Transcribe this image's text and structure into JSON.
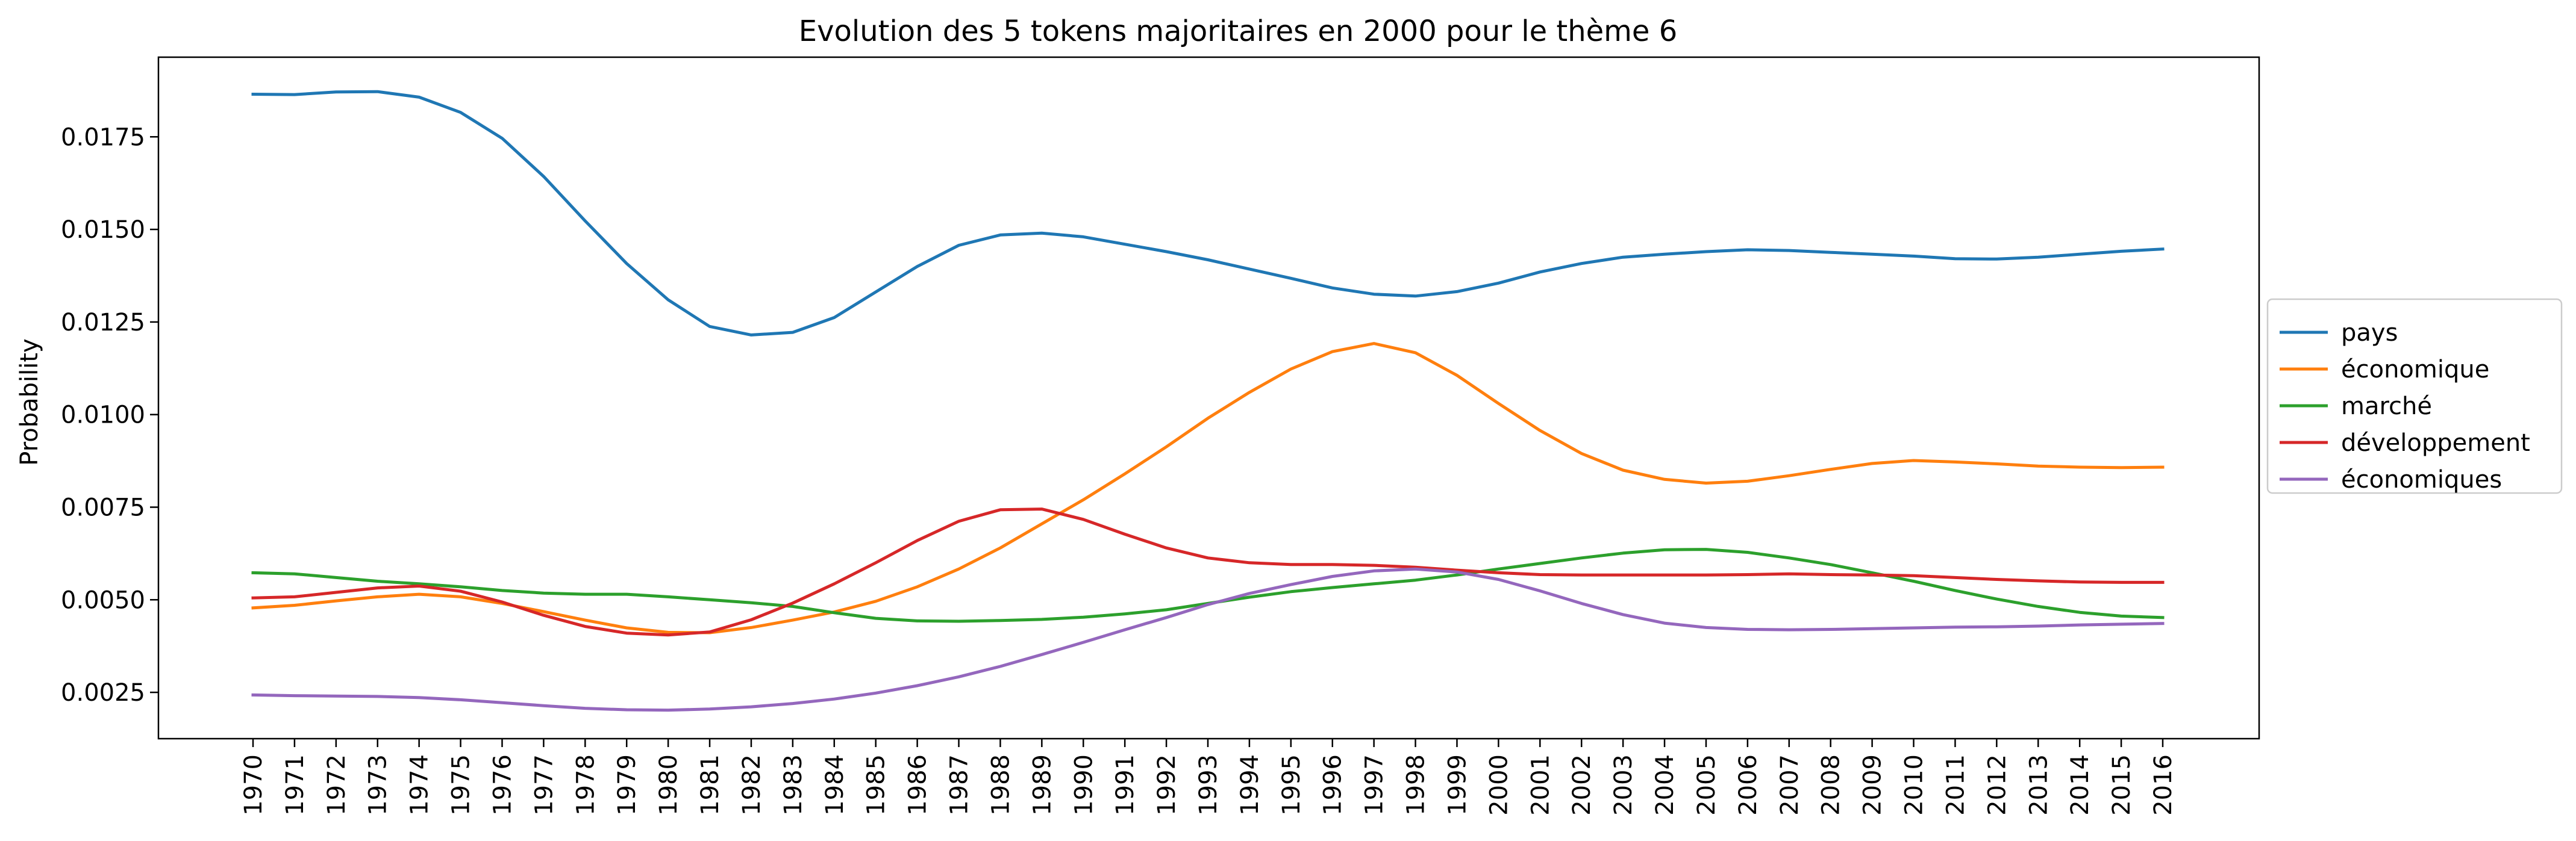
{
  "chart_data": {
    "type": "line",
    "title": "Evolution des 5 tokens majoritaires en 2000 pour le thème 6",
    "xlabel": "",
    "ylabel": "Probability",
    "x": [
      "1970",
      "1971",
      "1972",
      "1973",
      "1974",
      "1975",
      "1976",
      "1977",
      "1978",
      "1979",
      "1980",
      "1981",
      "1982",
      "1983",
      "1984",
      "1985",
      "1986",
      "1987",
      "1988",
      "1989",
      "1990",
      "1991",
      "1992",
      "1993",
      "1994",
      "1995",
      "1996",
      "1997",
      "1998",
      "1999",
      "2000",
      "2001",
      "2002",
      "2003",
      "2004",
      "2005",
      "2006",
      "2007",
      "2008",
      "2009",
      "2010",
      "2011",
      "2012",
      "2013",
      "2014",
      "2015",
      "2016"
    ],
    "ylim": [
      0.00125,
      0.01965
    ],
    "yticks": [
      0.0025,
      0.005,
      0.0075,
      0.01,
      0.0125,
      0.015,
      0.0175
    ],
    "ytick_labels": [
      "0.0025",
      "0.0050",
      "0.0075",
      "0.0100",
      "0.0125",
      "0.0150",
      "0.0175"
    ],
    "grid": false,
    "legend_position": "right",
    "series": [
      {
        "name": "pays",
        "color": "#1f77b4",
        "values": [
          0.01865,
          0.01864,
          0.01871,
          0.01872,
          0.01857,
          0.01816,
          0.01746,
          0.01643,
          0.01523,
          0.01408,
          0.0131,
          0.01238,
          0.01215,
          0.01222,
          0.01262,
          0.01331,
          0.014,
          0.01457,
          0.01485,
          0.0149,
          0.0148,
          0.0146,
          0.0144,
          0.01418,
          0.01393,
          0.01368,
          0.01342,
          0.01325,
          0.0132,
          0.01332,
          0.01355,
          0.01385,
          0.01408,
          0.01425,
          0.01433,
          0.0144,
          0.01445,
          0.01443,
          0.01438,
          0.01433,
          0.01428,
          0.01421,
          0.0142,
          0.01425,
          0.01433,
          0.01441,
          0.01447
        ]
      },
      {
        "name": "économique",
        "color": "#ff7f0e",
        "values": [
          0.00478,
          0.00485,
          0.00497,
          0.00508,
          0.00515,
          0.00508,
          0.0049,
          0.00468,
          0.00445,
          0.00424,
          0.00412,
          0.00411,
          0.00425,
          0.00445,
          0.00467,
          0.00496,
          0.00535,
          0.00583,
          0.0064,
          0.00705,
          0.0077,
          0.0084,
          0.00913,
          0.0099,
          0.0106,
          0.01123,
          0.0117,
          0.01192,
          0.01167,
          0.01106,
          0.0103,
          0.00957,
          0.00895,
          0.0085,
          0.00825,
          0.00815,
          0.0082,
          0.00835,
          0.00852,
          0.00868,
          0.00876,
          0.00872,
          0.00867,
          0.00861,
          0.00858,
          0.00857,
          0.00858
        ]
      },
      {
        "name": "marché",
        "color": "#2ca02c",
        "values": [
          0.00573,
          0.0057,
          0.0056,
          0.0055,
          0.00543,
          0.00535,
          0.00525,
          0.00518,
          0.00515,
          0.00515,
          0.00508,
          0.005,
          0.00492,
          0.00482,
          0.00465,
          0.0045,
          0.00443,
          0.00442,
          0.00444,
          0.00447,
          0.00453,
          0.00462,
          0.00473,
          0.0049,
          0.00507,
          0.00522,
          0.00533,
          0.00543,
          0.00553,
          0.00567,
          0.00583,
          0.00598,
          0.00613,
          0.00626,
          0.00635,
          0.00636,
          0.00628,
          0.00613,
          0.00595,
          0.00573,
          0.0055,
          0.00525,
          0.00502,
          0.00482,
          0.00466,
          0.00456,
          0.00452
        ]
      },
      {
        "name": "développement",
        "color": "#d62728",
        "values": [
          0.00505,
          0.00508,
          0.0052,
          0.00532,
          0.00537,
          0.00523,
          0.00494,
          0.00458,
          0.00428,
          0.0041,
          0.00405,
          0.00413,
          0.00446,
          0.00491,
          0.00543,
          0.006,
          0.0066,
          0.00712,
          0.00743,
          0.00745,
          0.00717,
          0.00677,
          0.0064,
          0.00613,
          0.006,
          0.00595,
          0.00595,
          0.00593,
          0.00588,
          0.0058,
          0.00573,
          0.00568,
          0.00567,
          0.00567,
          0.00567,
          0.00567,
          0.00568,
          0.0057,
          0.00568,
          0.00567,
          0.00565,
          0.0056,
          0.00555,
          0.00551,
          0.00548,
          0.00547,
          0.00547
        ]
      },
      {
        "name": "économiques",
        "color": "#9467bd",
        "values": [
          0.00243,
          0.00241,
          0.0024,
          0.00239,
          0.00236,
          0.0023,
          0.00222,
          0.00214,
          0.00207,
          0.00203,
          0.00202,
          0.00205,
          0.00211,
          0.0022,
          0.00232,
          0.00248,
          0.00268,
          0.00292,
          0.0032,
          0.00352,
          0.00385,
          0.00419,
          0.00452,
          0.00487,
          0.00517,
          0.00541,
          0.00563,
          0.00578,
          0.00583,
          0.00575,
          0.00555,
          0.00524,
          0.0049,
          0.0046,
          0.00437,
          0.00425,
          0.0042,
          0.00419,
          0.0042,
          0.00422,
          0.00424,
          0.00426,
          0.00427,
          0.00429,
          0.00432,
          0.00434,
          0.00436
        ]
      }
    ]
  }
}
